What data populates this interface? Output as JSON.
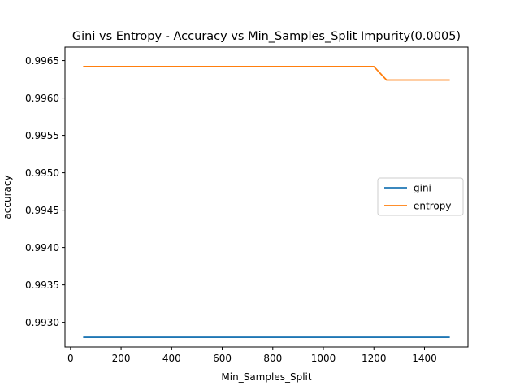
{
  "chart_data": {
    "type": "line",
    "title": "Gini vs Entropy - Accuracy vs Min_Samples_Split Impurity(0.0005)",
    "xlabel": "Min_Samples_Split",
    "ylabel": "accuracy",
    "xlim": [
      -22,
      1572
    ],
    "ylim": [
      0.99267,
      0.99668
    ],
    "xticks": [
      0,
      200,
      400,
      600,
      800,
      1000,
      1200,
      1400
    ],
    "xtick_labels": [
      "0",
      "200",
      "400",
      "600",
      "800",
      "1000",
      "1200",
      "1400"
    ],
    "yticks": [
      0.993,
      0.9935,
      0.994,
      0.9945,
      0.995,
      0.9955,
      0.996,
      0.9965
    ],
    "ytick_labels": [
      "0.9930",
      "0.9935",
      "0.9940",
      "0.9945",
      "0.9950",
      "0.9955",
      "0.9960",
      "0.9965"
    ],
    "grid": false,
    "legend_position": "center-right",
    "series": [
      {
        "name": "gini",
        "color": "#1f77b4",
        "x": [
          50,
          100,
          150,
          200,
          250,
          300,
          350,
          400,
          450,
          500,
          550,
          600,
          650,
          700,
          750,
          800,
          850,
          900,
          950,
          1000,
          1050,
          1100,
          1150,
          1200,
          1250,
          1300,
          1350,
          1400,
          1450,
          1500
        ],
        "y": [
          0.9928,
          0.9928,
          0.9928,
          0.9928,
          0.9928,
          0.9928,
          0.9928,
          0.9928,
          0.9928,
          0.9928,
          0.9928,
          0.9928,
          0.9928,
          0.9928,
          0.9928,
          0.9928,
          0.9928,
          0.9928,
          0.9928,
          0.9928,
          0.9928,
          0.9928,
          0.9928,
          0.9928,
          0.9928,
          0.9928,
          0.9928,
          0.9928,
          0.9928,
          0.9928
        ]
      },
      {
        "name": "entropy",
        "color": "#ff7f0e",
        "x": [
          50,
          100,
          150,
          200,
          250,
          300,
          350,
          400,
          450,
          500,
          550,
          600,
          650,
          700,
          750,
          800,
          850,
          900,
          950,
          1000,
          1050,
          1100,
          1150,
          1200,
          1250,
          1300,
          1350,
          1400,
          1450,
          1500
        ],
        "y": [
          0.99642,
          0.99642,
          0.99642,
          0.99642,
          0.99642,
          0.99642,
          0.99642,
          0.99642,
          0.99642,
          0.99642,
          0.99642,
          0.99642,
          0.99642,
          0.99642,
          0.99642,
          0.99642,
          0.99642,
          0.99642,
          0.99642,
          0.99642,
          0.99642,
          0.99642,
          0.99642,
          0.99642,
          0.99624,
          0.99624,
          0.99624,
          0.99624,
          0.99624,
          0.99624
        ]
      }
    ]
  }
}
